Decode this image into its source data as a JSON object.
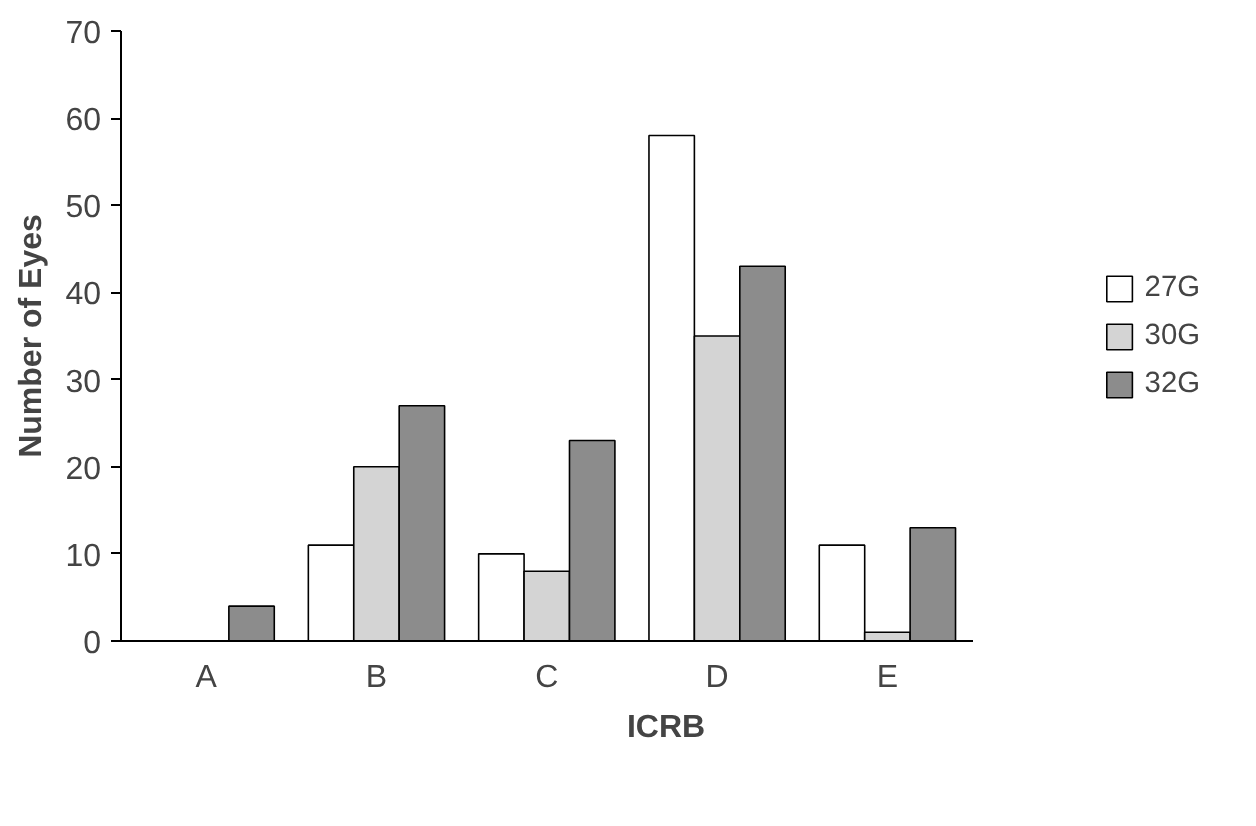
{
  "chart_data": {
    "type": "bar",
    "xlabel": "ICRB",
    "ylabel": "Number of Eyes",
    "categories": [
      "A",
      "B",
      "C",
      "D",
      "E"
    ],
    "series": [
      {
        "name": "27G",
        "color": "#ffffff",
        "values": [
          null,
          11,
          10,
          58,
          11
        ]
      },
      {
        "name": "30G",
        "color": "#d4d4d4",
        "values": [
          null,
          20,
          8,
          35,
          1
        ]
      },
      {
        "name": "32G",
        "color": "#8c8c8c",
        "values": [
          4,
          27,
          23,
          43,
          13
        ]
      }
    ],
    "ylim": [
      0,
      70
    ],
    "yticks": [
      0,
      10,
      20,
      30,
      40,
      50,
      60,
      70
    ],
    "grid": false,
    "legend": "right"
  }
}
